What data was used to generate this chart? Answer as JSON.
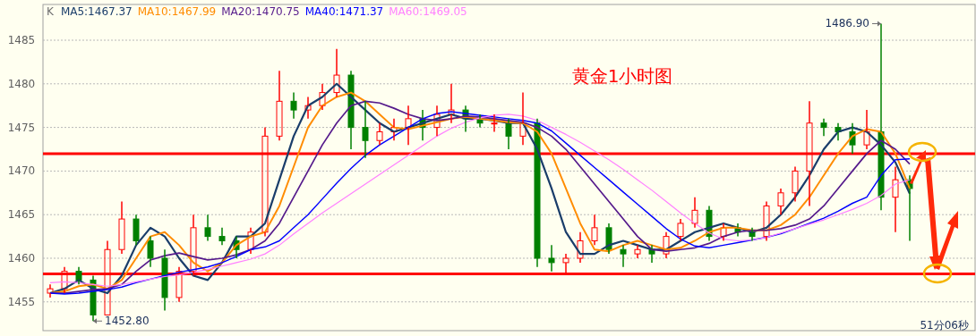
{
  "chart_data": {
    "type": "candlestick",
    "title": "黄金1小时图",
    "categories": [
      null,
      null,
      null,
      null,
      null,
      null,
      null,
      null,
      null,
      null,
      null,
      null,
      null,
      null,
      null,
      null,
      null,
      null,
      null,
      null,
      null,
      null,
      null,
      null,
      null,
      null,
      null,
      null,
      null,
      null,
      null,
      null,
      null,
      null,
      null,
      null,
      null,
      null,
      null,
      null,
      null,
      null,
      null,
      null,
      null,
      null,
      null,
      null,
      null,
      null,
      null,
      null,
      null,
      null,
      null,
      null,
      null,
      null,
      null,
      null,
      null
    ],
    "ohlc": [
      [
        1456,
        1457,
        1455.5,
        1456.5
      ],
      [
        1456.5,
        1459,
        1456,
        1458.5
      ],
      [
        1458.5,
        1459,
        1457,
        1457.5
      ],
      [
        1457.5,
        1458,
        1452.8,
        1453.5
      ],
      [
        1453.5,
        1462,
        1453.5,
        1461
      ],
      [
        1461,
        1466.5,
        1460.5,
        1464.5
      ],
      [
        1464.5,
        1465,
        1461.5,
        1462
      ],
      [
        1462,
        1462.5,
        1459,
        1460
      ],
      [
        1460,
        1461,
        1454,
        1455.5
      ],
      [
        1455.5,
        1459,
        1455,
        1458.5
      ],
      [
        1458.5,
        1465,
        1458,
        1463.5
      ],
      [
        1463.5,
        1465,
        1462,
        1462.5
      ],
      [
        1462.5,
        1463.5,
        1461.5,
        1462
      ],
      [
        1462,
        1462.5,
        1460,
        1461
      ],
      [
        1461,
        1463.5,
        1460.5,
        1463
      ],
      [
        1463,
        1475,
        1462.5,
        1474
      ],
      [
        1474,
        1481.5,
        1473.5,
        1478
      ],
      [
        1478,
        1479,
        1476,
        1477
      ],
      [
        1477,
        1478.5,
        1476,
        1477.5
      ],
      [
        1477.5,
        1480,
        1477,
        1479
      ],
      [
        1479,
        1484,
        1478.5,
        1481
      ],
      [
        1481,
        1481.5,
        1472.5,
        1475
      ],
      [
        1475,
        1478,
        1471.5,
        1473.5
      ],
      [
        1473.5,
        1475.5,
        1473,
        1474.5
      ],
      [
        1474.5,
        1476,
        1473.5,
        1475
      ],
      [
        1475,
        1477.5,
        1473,
        1476
      ],
      [
        1476,
        1477,
        1473.5,
        1475
      ],
      [
        1475,
        1477.5,
        1474,
        1476.5
      ],
      [
        1476.5,
        1480,
        1475.5,
        1477
      ],
      [
        1477,
        1477.5,
        1474.5,
        1476
      ],
      [
        1476,
        1476.5,
        1475,
        1475.5
      ],
      [
        1475.5,
        1476.5,
        1474.5,
        1475.5
      ],
      [
        1475.5,
        1476,
        1472.5,
        1474
      ],
      [
        1474,
        1479,
        1473,
        1475.5
      ],
      [
        1475.5,
        1476,
        1459,
        1460
      ],
      [
        1460,
        1461.5,
        1458.5,
        1459.5
      ],
      [
        1459.5,
        1460.5,
        1458.3,
        1460
      ],
      [
        1460,
        1463,
        1459.5,
        1462
      ],
      [
        1462,
        1465,
        1461.5,
        1463.5
      ],
      [
        1463.5,
        1464,
        1460.5,
        1461
      ],
      [
        1461,
        1461.5,
        1459,
        1460.5
      ],
      [
        1460.5,
        1461.5,
        1460,
        1461
      ],
      [
        1461,
        1461.5,
        1459.5,
        1460.5
      ],
      [
        1460.5,
        1463,
        1460,
        1462.5
      ],
      [
        1462.5,
        1464.5,
        1462,
        1464
      ],
      [
        1464,
        1467,
        1463.5,
        1465.5
      ],
      [
        1465.5,
        1466,
        1462,
        1462.5
      ],
      [
        1462.5,
        1464,
        1462,
        1463.5
      ],
      [
        1463.5,
        1464,
        1462.5,
        1463
      ],
      [
        1463,
        1463.5,
        1462,
        1462.5
      ],
      [
        1462.5,
        1466.5,
        1462,
        1466
      ],
      [
        1466,
        1468,
        1465,
        1467.5
      ],
      [
        1467.5,
        1470.5,
        1466.5,
        1470
      ],
      [
        1470,
        1478,
        1466,
        1475.5
      ],
      [
        1475.5,
        1476,
        1474,
        1475
      ],
      [
        1475,
        1475.5,
        1473.5,
        1474.5
      ],
      [
        1474.5,
        1475.5,
        1472,
        1473
      ],
      [
        1473,
        1477,
        1472.5,
        1474.5
      ],
      [
        1474.5,
        1486.9,
        1465.5,
        1467
      ],
      [
        1467,
        1470.5,
        1463,
        1469
      ],
      [
        1469,
        1469.5,
        1462,
        1468
      ]
    ],
    "series": [
      {
        "name": "MA5:1467.37",
        "type": "line",
        "color": "#1a3d6a",
        "values": [
          1456,
          1456.5,
          1457.5,
          1456.5,
          1456,
          1458,
          1461.5,
          1463.5,
          1462.5,
          1460,
          1458,
          1457.5,
          1459.5,
          1462.5,
          1462.5,
          1464,
          1469,
          1474,
          1477.5,
          1478.5,
          1480,
          1478.5,
          1477,
          1475.5,
          1474.5,
          1475,
          1475.5,
          1476,
          1476.5,
          1476,
          1476,
          1475.8,
          1475.5,
          1475.5,
          1472.5,
          1468,
          1463,
          1460.5,
          1460.5,
          1461.5,
          1462,
          1461.5,
          1461,
          1461,
          1462,
          1463,
          1463.5,
          1464,
          1463.5,
          1463,
          1463.5,
          1465,
          1467,
          1469.5,
          1472.5,
          1474.5,
          1475,
          1474.5,
          1473,
          1471,
          1467.4
        ]
      },
      {
        "name": "MA10:1467.99",
        "type": "line",
        "color": "#ff8c00",
        "values": [
          1456,
          1456.2,
          1456.8,
          1457,
          1456.5,
          1457.5,
          1460,
          1462.5,
          1463,
          1461.5,
          1459.5,
          1458.5,
          1459.5,
          1461.5,
          1462.5,
          1463,
          1466,
          1470.5,
          1475,
          1477.5,
          1478.5,
          1479,
          1478,
          1476.5,
          1475,
          1474.8,
          1475.2,
          1475.6,
          1476,
          1476.2,
          1476,
          1475.8,
          1475.6,
          1475.5,
          1474.5,
          1472,
          1468,
          1464,
          1461,
          1460.8,
          1461.5,
          1462,
          1461.5,
          1461,
          1461.2,
          1462,
          1463,
          1463.5,
          1463.5,
          1463.2,
          1463.2,
          1463.8,
          1465,
          1467,
          1469.5,
          1472,
          1474,
          1474.8,
          1474.5,
          1472,
          1468
        ]
      },
      {
        "name": "MA20:1470.75",
        "type": "line",
        "color": "#551a8b",
        "values": [
          1456,
          1456,
          1456.2,
          1456.4,
          1456.5,
          1457,
          1458.5,
          1459.8,
          1460.3,
          1460.6,
          1460.2,
          1459.8,
          1460,
          1460.4,
          1461,
          1462,
          1464,
          1467,
          1470,
          1473,
          1475.5,
          1477.5,
          1478,
          1477.8,
          1477.2,
          1476.5,
          1476,
          1475.8,
          1476,
          1476.3,
          1476.2,
          1476,
          1475.8,
          1475.6,
          1475,
          1474,
          1472.5,
          1470.5,
          1468.5,
          1466.5,
          1464.5,
          1462.5,
          1461,
          1460.8,
          1461,
          1461.2,
          1461.7,
          1462.5,
          1463,
          1463.2,
          1463.2,
          1463.4,
          1463.8,
          1464.5,
          1466,
          1468,
          1470,
          1472,
          1473.5,
          1472.5,
          1470.8
        ]
      },
      {
        "name": "MA40:1471.37",
        "type": "line",
        "color": "#0000ff",
        "values": [
          1456,
          1455.9,
          1456,
          1456.2,
          1456.4,
          1456.7,
          1457.2,
          1457.6,
          1458,
          1458.4,
          1458.7,
          1459,
          1459.5,
          1460.2,
          1461,
          1461.3,
          1462,
          1463.5,
          1465,
          1466.8,
          1468.6,
          1470.3,
          1471.8,
          1473,
          1474,
          1475,
          1476,
          1476.6,
          1476.8,
          1476.6,
          1476.4,
          1476.2,
          1476,
          1475.8,
          1475.5,
          1474.6,
          1473.2,
          1471.8,
          1470.4,
          1469,
          1467.6,
          1466.2,
          1464.8,
          1463.4,
          1462.2,
          1461.4,
          1461.2,
          1461.5,
          1461.8,
          1462.1,
          1462.4,
          1462.8,
          1463.4,
          1464,
          1464.6,
          1465.4,
          1466.3,
          1467,
          1469.5,
          1471.3,
          1471.4
        ]
      },
      {
        "name": "MA60:1469.05",
        "type": "line",
        "color": "#ff80ff",
        "values": [
          1457.2,
          1457.3,
          1457.2,
          1457,
          1456.8,
          1457,
          1457.3,
          1457.6,
          1457.9,
          1458.1,
          1458.4,
          1458.7,
          1459.1,
          1459.5,
          1459.9,
          1460.5,
          1461.5,
          1462.8,
          1464,
          1465.2,
          1466.3,
          1467.4,
          1468.5,
          1469.6,
          1470.7,
          1471.8,
          1472.9,
          1474,
          1474.9,
          1475.6,
          1476.1,
          1476.4,
          1476.5,
          1476.3,
          1475.8,
          1475,
          1474.2,
          1473.3,
          1472.3,
          1471.3,
          1470.2,
          1469,
          1467.8,
          1466.5,
          1465.2,
          1464,
          1462.9,
          1462.2,
          1462,
          1462.1,
          1462.4,
          1462.9,
          1463.4,
          1463.9,
          1464.4,
          1465,
          1465.6,
          1466.3,
          1467.2,
          1468.5,
          1469
        ]
      }
    ],
    "ylim": [
      1451.7,
      1489.1
    ],
    "yticks": [
      1455,
      1460,
      1465,
      1470,
      1475,
      1480,
      1485
    ],
    "grid": "y",
    "legend": "top left",
    "ref_lines": [
      {
        "axis": "y",
        "value": 1472,
        "color": "#ff0000"
      },
      {
        "axis": "y",
        "value": 1458.2,
        "color": "#ff0000"
      }
    ],
    "annotations": [
      "K",
      "1486.90",
      "1452.80",
      "51分06秒"
    ]
  }
}
